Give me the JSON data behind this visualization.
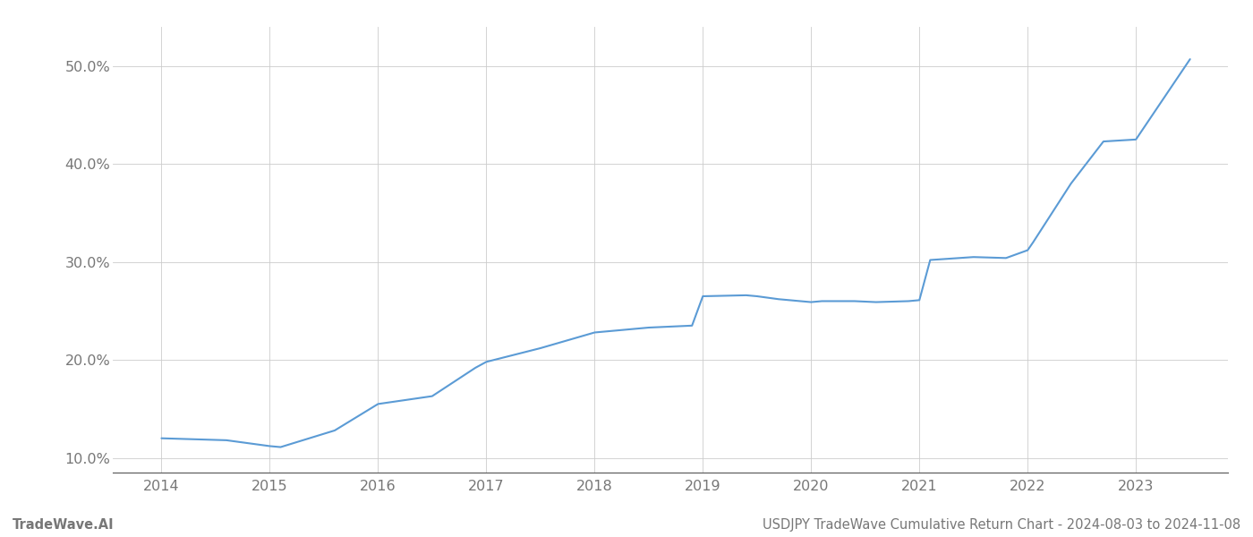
{
  "title": "USDJPY TradeWave Cumulative Return Chart - 2024-08-03 to 2024-11-08",
  "footer_left": "TradeWave.AI",
  "x_values": [
    2014.0,
    2014.6,
    2015.0,
    2015.1,
    2015.6,
    2016.0,
    2016.5,
    2016.9,
    2017.0,
    2017.5,
    2018.0,
    2018.5,
    2018.9,
    2019.0,
    2019.4,
    2019.5,
    2019.7,
    2019.9,
    2020.0,
    2020.1,
    2020.4,
    2020.6,
    2020.9,
    2021.0,
    2021.1,
    2021.5,
    2021.8,
    2022.0,
    2022.05,
    2022.4,
    2022.7,
    2023.0,
    2023.5
  ],
  "y_values": [
    12.0,
    11.8,
    11.2,
    11.1,
    12.8,
    15.5,
    16.3,
    19.2,
    19.8,
    21.2,
    22.8,
    23.3,
    23.5,
    26.5,
    26.6,
    26.5,
    26.2,
    26.0,
    25.9,
    26.0,
    26.0,
    25.9,
    26.0,
    26.1,
    30.2,
    30.5,
    30.4,
    31.2,
    32.0,
    38.0,
    42.3,
    42.5,
    50.7
  ],
  "line_color": "#5b9bd5",
  "line_width": 1.5,
  "background_color": "#ffffff",
  "grid_color": "#cccccc",
  "axes_color": "#555555",
  "tick_color": "#777777",
  "xlim": [
    2013.55,
    2023.85
  ],
  "ylim": [
    8.5,
    54.0
  ],
  "yticks": [
    10.0,
    20.0,
    30.0,
    40.0,
    50.0
  ],
  "ytick_labels": [
    "10.0%",
    "20.0%",
    "30.0%",
    "40.0%",
    "50.0%"
  ],
  "xticks": [
    2014,
    2015,
    2016,
    2017,
    2018,
    2019,
    2020,
    2021,
    2022,
    2023
  ],
  "title_fontsize": 10.5,
  "tick_fontsize": 11.5,
  "footer_fontsize": 10.5
}
